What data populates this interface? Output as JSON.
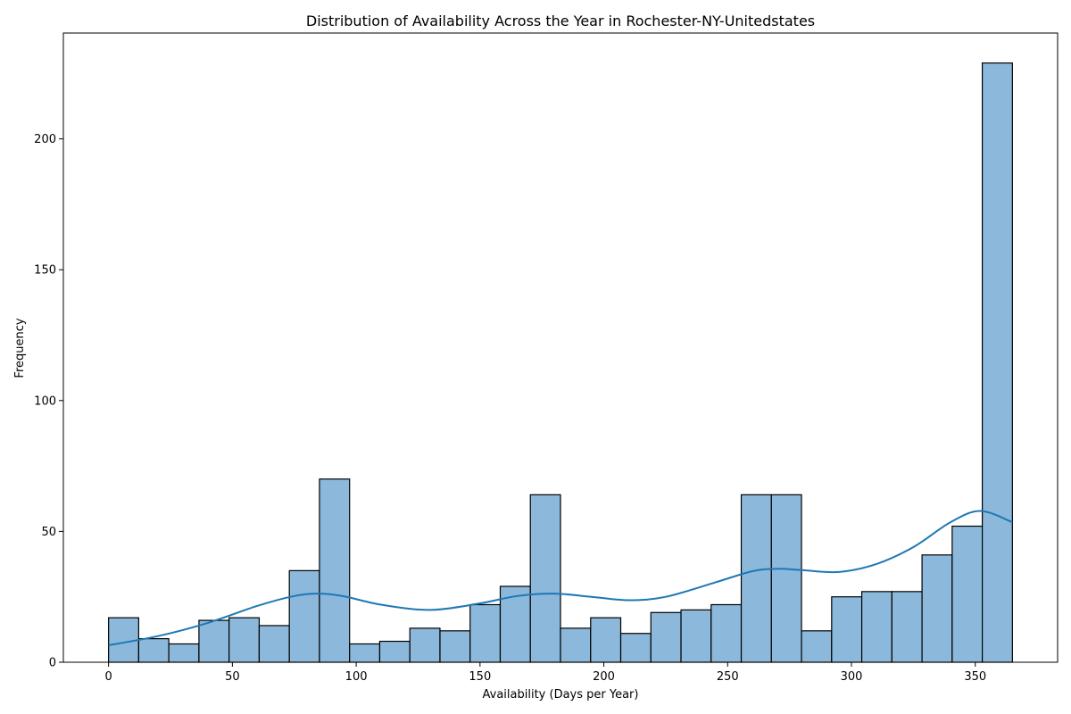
{
  "chart_data": {
    "type": "bar",
    "title": "Distribution of Availability Across the Year in Rochester-NY-Unitedstates",
    "xlabel": "Availability (Days per Year)",
    "ylabel": "Frequency",
    "xlim": [
      -18.25,
      383.25
    ],
    "ylim": [
      0,
      240.45
    ],
    "x_ticks": [
      0,
      50,
      100,
      150,
      200,
      250,
      300,
      350
    ],
    "y_ticks": [
      0,
      50,
      100,
      150,
      200
    ],
    "bin_edges": [
      0,
      12.167,
      24.333,
      36.5,
      48.667,
      60.833,
      73,
      85.167,
      97.333,
      109.5,
      121.667,
      133.833,
      146,
      158.167,
      170.333,
      182.5,
      194.667,
      206.833,
      219,
      231.167,
      243.333,
      255.5,
      267.667,
      279.833,
      292,
      304.167,
      316.333,
      328.5,
      340.667,
      352.833,
      365
    ],
    "values": [
      17,
      9,
      7,
      16,
      17,
      14,
      35,
      70,
      7,
      8,
      13,
      12,
      22,
      29,
      64,
      13,
      17,
      11,
      19,
      20,
      22,
      64,
      64,
      12,
      25,
      27,
      27,
      41,
      52,
      229
    ],
    "kde": {
      "x": [
        0,
        20,
        40,
        60,
        75,
        85,
        95,
        110,
        130,
        150,
        165,
        180,
        195,
        210,
        225,
        245,
        260,
        270,
        280,
        295,
        310,
        325,
        340,
        352,
        365
      ],
      "y": [
        6.5,
        10,
        15,
        21.5,
        25.3,
        26.2,
        25.2,
        22,
        20,
        22.5,
        25.3,
        26.2,
        25,
        23.7,
        25,
        30.5,
        34.8,
        35.7,
        35.2,
        34.5,
        37.5,
        44,
        53.5,
        57.8,
        53.5
      ]
    },
    "colors": {
      "bar_fill": "#8cb9db",
      "bar_edge": "#000000",
      "kde_line": "#1f77b4"
    }
  }
}
